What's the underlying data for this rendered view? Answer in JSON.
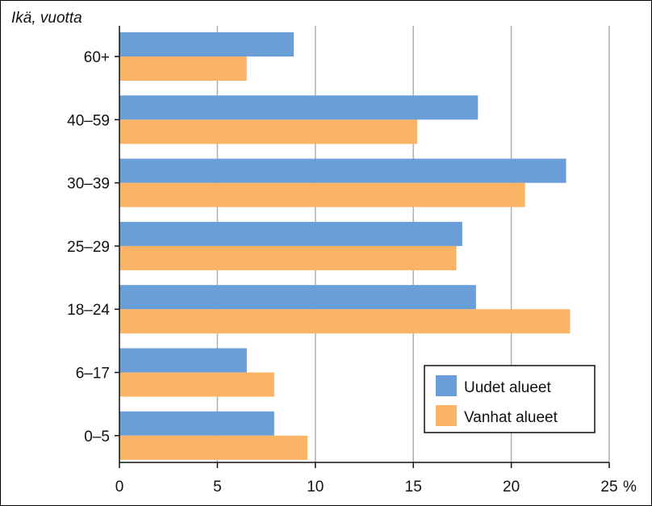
{
  "chart_data": {
    "type": "bar",
    "orientation": "horizontal",
    "ylabel": "Ikä, vuotta",
    "unit_label": "%",
    "categories": [
      "60+",
      "40–59",
      "30–39",
      "25–29",
      "18–24",
      "6–17",
      "0–5"
    ],
    "series": [
      {
        "name": "Uudet alueet",
        "color": "#6a9ed8",
        "values": [
          8.9,
          18.3,
          22.8,
          17.5,
          18.2,
          6.5,
          7.9
        ]
      },
      {
        "name": "Vanhat alueet",
        "color": "#fbb466",
        "values": [
          6.5,
          15.2,
          20.7,
          17.2,
          23.0,
          7.9,
          9.6
        ]
      }
    ],
    "xlim": [
      0,
      25
    ],
    "xticks": [
      "0",
      "5",
      "10",
      "15",
      "20",
      "25"
    ],
    "grid": "vertical",
    "legend": "bottom-right"
  }
}
